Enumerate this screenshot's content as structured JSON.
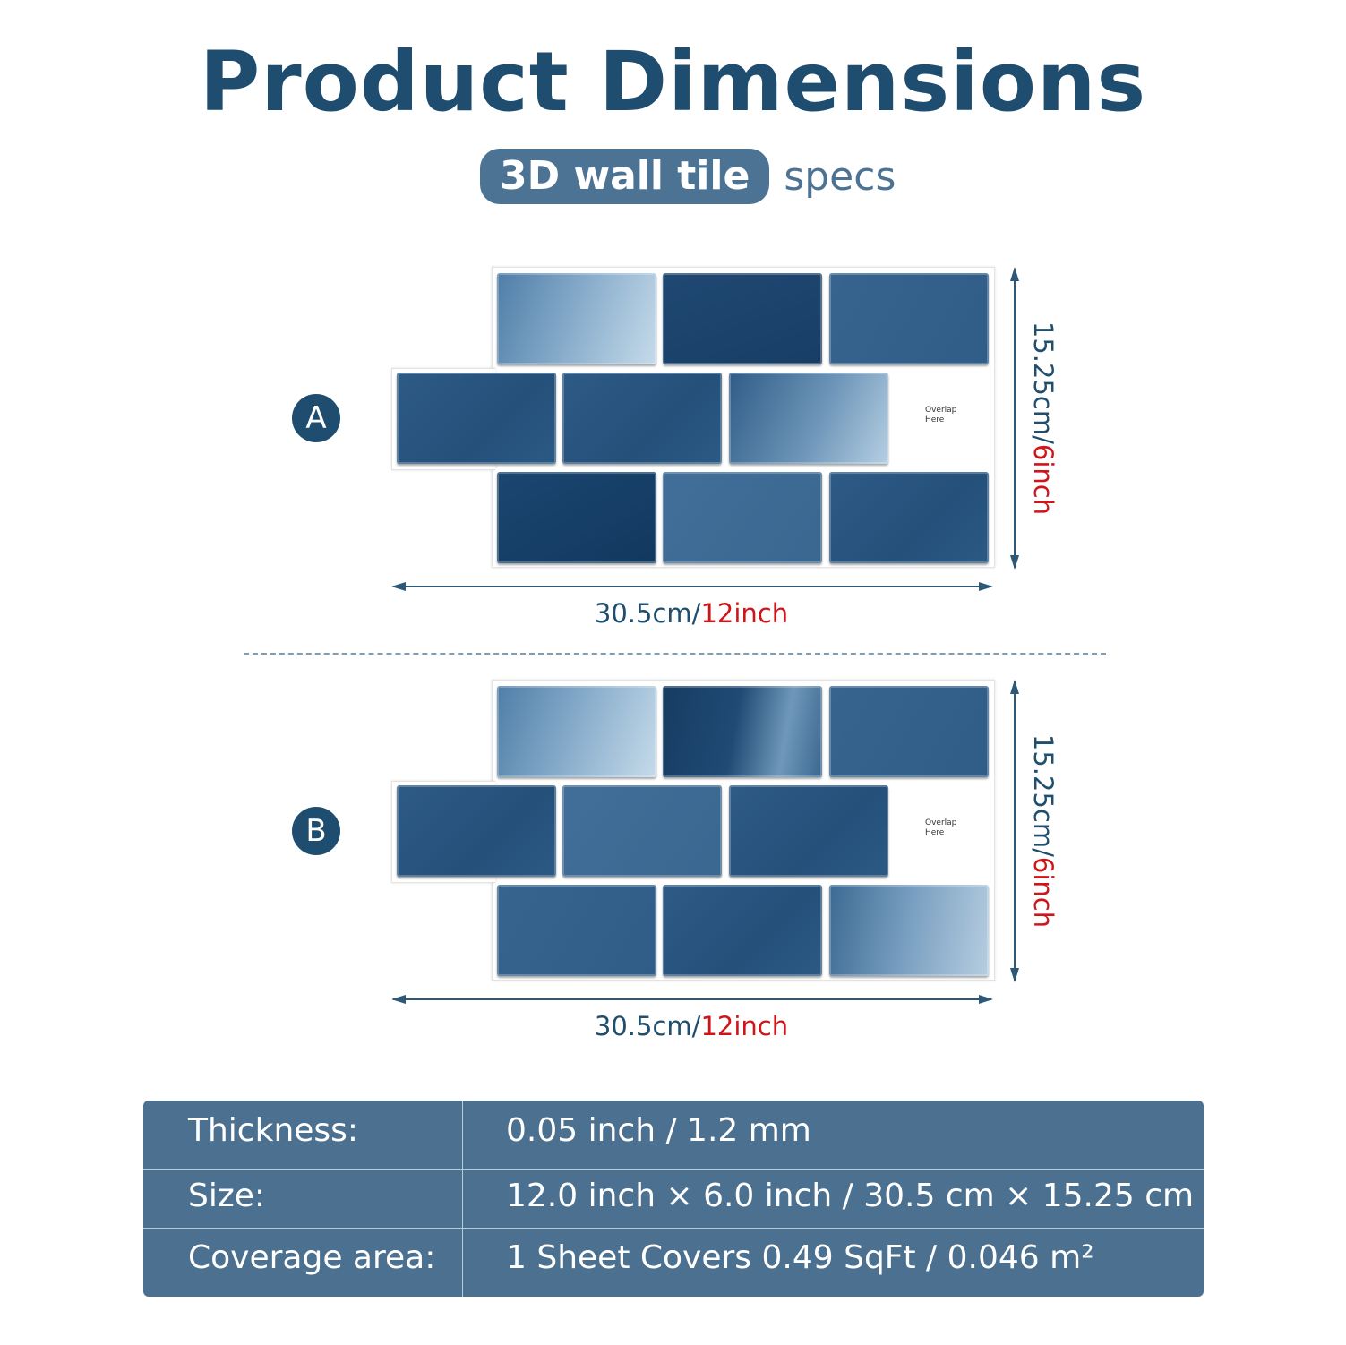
{
  "header": {
    "title": "Product Dimensions",
    "pill": "3D wall tile",
    "pill_suffix": "specs"
  },
  "sheets": [
    {
      "badge": "A",
      "overlap_line1": "Overlap",
      "overlap_line2": "Here",
      "width_text": "30.5cm/",
      "width_red": "12inch",
      "height_text": "15.25cm/",
      "height_red": "6inch"
    },
    {
      "badge": "B",
      "overlap_line1": "Overlap",
      "overlap_line2": "Here",
      "width_text": "30.5cm/",
      "width_red": "12inch",
      "height_text": "15.25cm/",
      "height_red": "6inch"
    }
  ],
  "specs": [
    {
      "label": "Thickness:",
      "value": "0.05 inch / 1.2 mm"
    },
    {
      "label": "Size:",
      "value": "12.0 inch × 6.0 inch / 30.5 cm × 15.25 cm"
    },
    {
      "label": "Coverage area:",
      "value": "1 Sheet Covers 0.49 SqFt / 0.046 m²"
    }
  ],
  "colors": {
    "title": "#1e4d6f",
    "pill_bg": "#4d7394",
    "accent_red": "#d0151a",
    "table_bg": "#4c7190"
  }
}
